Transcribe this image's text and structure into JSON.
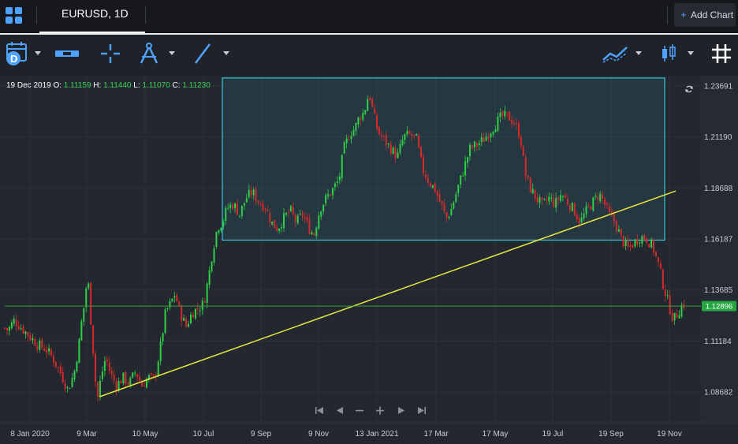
{
  "header": {
    "tab_title": "EURUSD, 1D",
    "add_chart_label": "Add Chart",
    "add_chart_plus": "+"
  },
  "toolbar": {
    "icons": [
      "calendar-d-icon",
      "range-icon",
      "crosshair-icon",
      "compass-icon",
      "line-draw-icon",
      "indicator-icon",
      "candlestick-icon",
      "grid-icon"
    ]
  },
  "ohlc": {
    "date": "19 Dec 2019",
    "o_label": "O:",
    "o": "1.11159",
    "h_label": "H:",
    "h": "1.11440",
    "l_label": "L:",
    "l": "1.11070",
    "c_label": "C:",
    "c": "1.11230"
  },
  "nav_icons": [
    "go-start-icon",
    "prev-icon",
    "zoom-out-icon",
    "zoom-in-icon",
    "next-icon",
    "go-end-icon"
  ],
  "colors": {
    "up": "#2fd048",
    "down": "#d62a2a",
    "trendline": "#e8e83a",
    "box": "#36c6d6",
    "price_line": "#3c9a3c",
    "price_badge": "#26a641"
  },
  "chart_data": {
    "type": "candlestick",
    "symbol": "EURUSD",
    "timeframe": "1D",
    "ylim": [
      1.0718,
      1.2419
    ],
    "y_ticks": [
      "1.23691",
      "1.21190",
      "1.18688",
      "1.16187",
      "1.13685",
      "1.11184",
      "1.08682"
    ],
    "x_ticks": [
      "8 Jan 2020",
      "9 Mar",
      "10 May",
      "10 Jul",
      "9 Sep",
      "9 Nov",
      "13 Jan 2021",
      "17 Mar",
      "17 May",
      "19 Jul",
      "19 Sep",
      "19 Nov"
    ],
    "current_price": "1.12896",
    "closes_path": [
      [
        0,
        1.12
      ],
      [
        10,
        1.117
      ],
      [
        18,
        1.122
      ],
      [
        28,
        1.118
      ],
      [
        38,
        1.114
      ],
      [
        48,
        1.11
      ],
      [
        58,
        1.108
      ],
      [
        66,
        1.104
      ],
      [
        76,
        1.097
      ],
      [
        86,
        1.088
      ],
      [
        94,
        1.096
      ],
      [
        100,
        1.11
      ],
      [
        104,
        1.123
      ],
      [
        108,
        1.132
      ],
      [
        111,
        1.146
      ],
      [
        114,
        1.128
      ],
      [
        118,
        1.108
      ],
      [
        123,
        1.082
      ],
      [
        128,
        1.094
      ],
      [
        134,
        1.104
      ],
      [
        140,
        1.096
      ],
      [
        148,
        1.09
      ],
      [
        156,
        1.094
      ],
      [
        164,
        1.091
      ],
      [
        172,
        1.097
      ],
      [
        180,
        1.09
      ],
      [
        188,
        1.094
      ],
      [
        196,
        1.093
      ],
      [
        204,
        1.11
      ],
      [
        210,
        1.126
      ],
      [
        216,
        1.13
      ],
      [
        222,
        1.135
      ],
      [
        228,
        1.126
      ],
      [
        236,
        1.119
      ],
      [
        244,
        1.126
      ],
      [
        252,
        1.128
      ],
      [
        258,
        1.13
      ],
      [
        264,
        1.142
      ],
      [
        270,
        1.157
      ],
      [
        276,
        1.168
      ],
      [
        282,
        1.17
      ],
      [
        288,
        1.177
      ],
      [
        296,
        1.179
      ],
      [
        304,
        1.174
      ],
      [
        312,
        1.182
      ],
      [
        320,
        1.185
      ],
      [
        328,
        1.18
      ],
      [
        336,
        1.178
      ],
      [
        344,
        1.17
      ],
      [
        352,
        1.167
      ],
      [
        360,
        1.172
      ],
      [
        368,
        1.176
      ],
      [
        376,
        1.17
      ],
      [
        384,
        1.174
      ],
      [
        392,
        1.167
      ],
      [
        398,
        1.164
      ],
      [
        406,
        1.177
      ],
      [
        414,
        1.182
      ],
      [
        422,
        1.186
      ],
      [
        430,
        1.191
      ],
      [
        436,
        1.206
      ],
      [
        444,
        1.214
      ],
      [
        450,
        1.216
      ],
      [
        456,
        1.222
      ],
      [
        462,
        1.224
      ],
      [
        468,
        1.234
      ],
      [
        474,
        1.222
      ],
      [
        480,
        1.214
      ],
      [
        488,
        1.21
      ],
      [
        496,
        1.206
      ],
      [
        504,
        1.202
      ],
      [
        512,
        1.212
      ],
      [
        520,
        1.213
      ],
      [
        528,
        1.211
      ],
      [
        536,
        1.196
      ],
      [
        544,
        1.19
      ],
      [
        552,
        1.186
      ],
      [
        560,
        1.178
      ],
      [
        566,
        1.172
      ],
      [
        572,
        1.176
      ],
      [
        580,
        1.186
      ],
      [
        588,
        1.196
      ],
      [
        596,
        1.206
      ],
      [
        604,
        1.208
      ],
      [
        612,
        1.21
      ],
      [
        620,
        1.214
      ],
      [
        628,
        1.218
      ],
      [
        636,
        1.222
      ],
      [
        644,
        1.222
      ],
      [
        652,
        1.219
      ],
      [
        660,
        1.212
      ],
      [
        666,
        1.194
      ],
      [
        672,
        1.187
      ],
      [
        680,
        1.182
      ],
      [
        688,
        1.178
      ],
      [
        696,
        1.182
      ],
      [
        704,
        1.179
      ],
      [
        712,
        1.184
      ],
      [
        720,
        1.18
      ],
      [
        728,
        1.176
      ],
      [
        736,
        1.17
      ],
      [
        744,
        1.176
      ],
      [
        752,
        1.18
      ],
      [
        760,
        1.184
      ],
      [
        766,
        1.18
      ],
      [
        772,
        1.174
      ],
      [
        780,
        1.17
      ],
      [
        788,
        1.162
      ],
      [
        796,
        1.157
      ],
      [
        804,
        1.16
      ],
      [
        812,
        1.163
      ],
      [
        820,
        1.162
      ],
      [
        828,
        1.158
      ],
      [
        836,
        1.148
      ],
      [
        842,
        1.138
      ],
      [
        848,
        1.13
      ],
      [
        854,
        1.122
      ],
      [
        860,
        1.126
      ],
      [
        866,
        1.13
      ],
      [
        872,
        1.129
      ]
    ],
    "drawings": {
      "trendline": {
        "from": [
          "9 Mar",
          1.0845
        ],
        "to": [
          "21 Nov",
          1.1854
        ]
      },
      "rectangle": {
        "x_from": "Jul",
        "x_to": "Nov",
        "y_from": 1.1613,
        "y_to": 1.2408
      }
    }
  }
}
